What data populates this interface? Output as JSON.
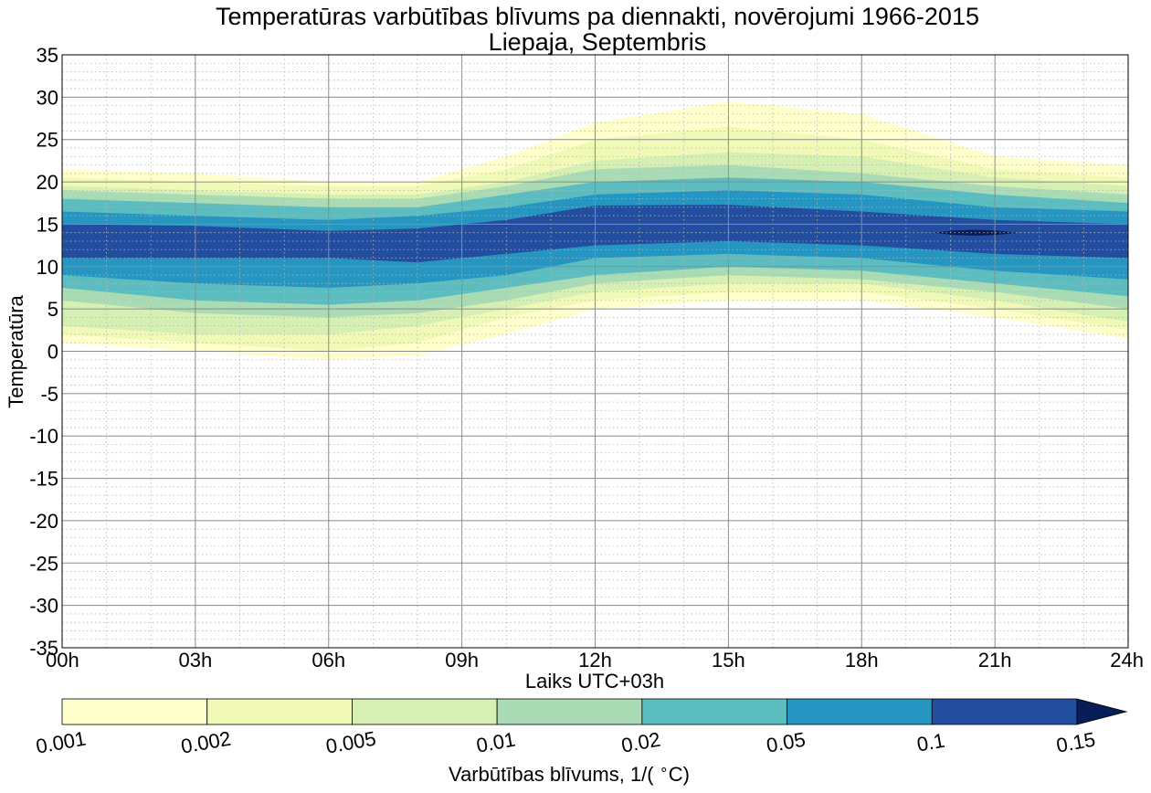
{
  "chart_data": {
    "type": "contourf",
    "title": "Temperatūras varbūtības blīvums pa diennakti, novērojumi 1966-2015",
    "subtitle": "Liepaja, Septembris",
    "xlabel": "Laiks UTC+03h",
    "ylabel": "Temperatūra",
    "colorbar_label": "Varbūtības blīvums, 1/($^\\circ$C)",
    "xlim": [
      0,
      24
    ],
    "ylim": [
      -35,
      35
    ],
    "x_ticks": [
      0,
      3,
      6,
      9,
      12,
      15,
      18,
      21,
      24
    ],
    "x_tick_labels": [
      "00h",
      "03h",
      "06h",
      "09h",
      "12h",
      "15h",
      "18h",
      "21h",
      "24h"
    ],
    "y_ticks": [
      -35,
      -30,
      -25,
      -20,
      -15,
      -10,
      -5,
      0,
      5,
      10,
      15,
      20,
      25,
      30,
      35
    ],
    "y_tick_labels": [
      "-35",
      "-30",
      "-25",
      "-20",
      "-15",
      "-10",
      "-5",
      "0",
      "5",
      "10",
      "15",
      "20",
      "25",
      "30",
      "35"
    ],
    "grid": true,
    "levels": [
      0.001,
      0.002,
      0.005,
      0.01,
      0.02,
      0.05,
      0.1,
      0.15
    ],
    "level_labels": [
      "0.001",
      "0.002",
      "0.005",
      "0.01",
      "0.02",
      "0.05",
      "0.1",
      "0.15"
    ],
    "level_colors": [
      "#ffffcc",
      "#f0f9b6",
      "#d6efb3",
      "#a9dcb5",
      "#5bbdc0",
      "#2496c1",
      "#234ea0",
      "#081d58"
    ],
    "x_hours": [
      0,
      3,
      6,
      8,
      10,
      12,
      15,
      18,
      21,
      24
    ],
    "bands": [
      {
        "level": 0.001,
        "upper": [
          21.5,
          21,
          20,
          20,
          23,
          27,
          29.5,
          28,
          23,
          22
        ],
        "lower": [
          1,
          0,
          -1,
          -0.5,
          2,
          5,
          6,
          6,
          4,
          1.5
        ]
      },
      {
        "level": 0.002,
        "upper": [
          20.5,
          20,
          19.5,
          19.5,
          21.5,
          25,
          26.5,
          25,
          21.5,
          20.5
        ],
        "lower": [
          2,
          1,
          0,
          1,
          4,
          6,
          7,
          7,
          5,
          2.5
        ]
      },
      {
        "level": 0.005,
        "upper": [
          19.5,
          19,
          18.5,
          18.5,
          20,
          22.5,
          23.5,
          23,
          20.5,
          19.5
        ],
        "lower": [
          3,
          2,
          2,
          3,
          5,
          7,
          8,
          8,
          6,
          3.5
        ]
      },
      {
        "level": 0.01,
        "upper": [
          19,
          18.5,
          18,
          18,
          19.5,
          21.5,
          22,
          21,
          19.5,
          18.5
        ],
        "lower": [
          6,
          4.5,
          4,
          4.5,
          6,
          8,
          9,
          8.5,
          7,
          5
        ]
      },
      {
        "level": 0.02,
        "upper": [
          18,
          17.5,
          17,
          17,
          18.5,
          20,
          20.5,
          20,
          18.5,
          17.5
        ],
        "lower": [
          7.5,
          6,
          5.5,
          6,
          7.5,
          9,
          10,
          9.5,
          8,
          6.5
        ]
      },
      {
        "level": 0.05,
        "upper": [
          16.5,
          16,
          15.5,
          16,
          17,
          18.5,
          19,
          18.5,
          17,
          16.5
        ],
        "lower": [
          9,
          8,
          7.5,
          8,
          9,
          11,
          11.5,
          11,
          9.5,
          8.5
        ]
      },
      {
        "level": 0.1,
        "upper": [
          15,
          14.8,
          14.2,
          14.5,
          15.5,
          17.2,
          17.3,
          16.5,
          15.5,
          15
        ],
        "lower": [
          11,
          11,
          11,
          10.5,
          11.5,
          12.5,
          13,
          12.5,
          11.5,
          11
        ]
      }
    ],
    "peak_region": {
      "level": 0.15,
      "x_range": [
        19.6,
        21.5
      ],
      "y_center": 14,
      "half_height": 0.35
    }
  }
}
